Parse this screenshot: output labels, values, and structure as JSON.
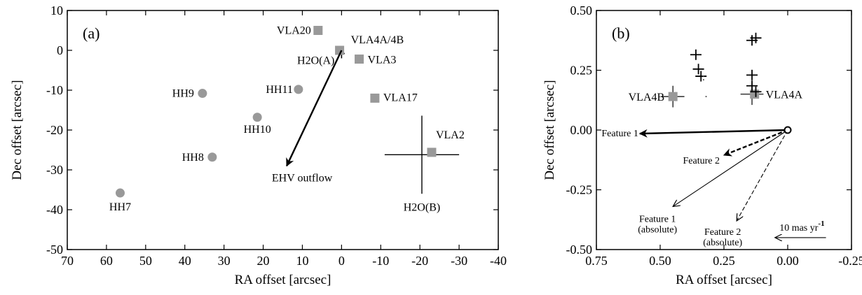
{
  "chart_data": [
    {
      "panel_label": "(a)",
      "type": "scatter",
      "xlabel": "RA offset [arcsec]",
      "ylabel": "Dec offset [arcsec]",
      "xlim": [
        70,
        -40
      ],
      "ylim": [
        -50,
        10
      ],
      "xticks": [
        70,
        60,
        50,
        40,
        30,
        20,
        10,
        0,
        -10,
        -20,
        -30,
        -40
      ],
      "xtick_labels": [
        "70",
        "60",
        "50",
        "40",
        "30",
        "20",
        "10",
        "0",
        "-10",
        "-20",
        "-30",
        "-40"
      ],
      "yticks": [
        10,
        0,
        -10,
        -20,
        -30,
        -40,
        -50
      ],
      "ytick_labels": [
        "10",
        "0",
        "-10",
        "-20",
        "-30",
        "-40",
        "-50"
      ],
      "grid": false,
      "marker_color": "#999999",
      "circles": [
        {
          "label": "HH9",
          "x": 35.5,
          "y": -10.8
        },
        {
          "label": "HH11",
          "x": 11,
          "y": -9.8
        },
        {
          "label": "HH10",
          "x": 21.5,
          "y": -16.8
        },
        {
          "label": "HH8",
          "x": 33,
          "y": -26.8
        },
        {
          "label": "HH7",
          "x": 56.5,
          "y": -35.8
        }
      ],
      "squares": [
        {
          "label": "VLA20",
          "x": 6,
          "y": 5
        },
        {
          "label": "VLA4A/4B",
          "x": 0.5,
          "y": 0
        },
        {
          "label": "VLA3",
          "x": -4.5,
          "y": -2.2
        },
        {
          "label": "VLA17",
          "x": -8.5,
          "y": -12
        },
        {
          "label": "VLA2",
          "x": -23,
          "y": -25.6
        }
      ],
      "crosses": [
        {
          "label": "H2O(A)",
          "x": 0,
          "y": -0.8,
          "dx": 0.8,
          "dy": 1.2
        },
        {
          "label": "H2O(B)",
          "x": -20.5,
          "y": -26.2,
          "dx": 9.5,
          "dy": 9.8
        }
      ],
      "arrow": {
        "label": "EHV outflow",
        "from": [
          0,
          0
        ],
        "to": [
          14,
          -29
        ]
      }
    },
    {
      "panel_label": "(b)",
      "type": "scatter",
      "xlabel": "RA offset [arcsec]",
      "ylabel": "Dec offset [arcsec]",
      "xlim": [
        0.75,
        -0.25
      ],
      "ylim": [
        -0.5,
        0.5
      ],
      "xticks": [
        0.75,
        0.5,
        0.25,
        0,
        -0.25
      ],
      "xtick_labels": [
        "0.75",
        "0.50",
        "0.25",
        "0.00",
        "-0.25"
      ],
      "yticks": [
        0.5,
        0.25,
        0,
        -0.25,
        -0.5
      ],
      "ytick_labels": [
        "0.50",
        "0.25",
        "0.00",
        "-0.25",
        "-0.50"
      ],
      "grid": false,
      "marker_color": "#999999",
      "squares": [
        {
          "label": "VLA4B",
          "x": 0.45,
          "y": 0.14
        },
        {
          "label": "VLA4A",
          "x": 0.13,
          "y": 0.15
        }
      ],
      "vla_crosses": [
        {
          "x": 0.45,
          "y": 0.14,
          "dx": 0.045,
          "dy": 0.045
        },
        {
          "x": 0.14,
          "y": 0.15,
          "dx": 0.045,
          "dy": 0.045
        }
      ],
      "maser_crosses": [
        {
          "x": 0.36,
          "y": 0.315
        },
        {
          "x": 0.35,
          "y": 0.255
        },
        {
          "x": 0.34,
          "y": 0.225
        },
        {
          "x": 0.14,
          "y": 0.375
        },
        {
          "x": 0.125,
          "y": 0.385
        },
        {
          "x": 0.14,
          "y": 0.23
        },
        {
          "x": 0.14,
          "y": 0.185
        },
        {
          "x": 0.125,
          "y": 0.16
        }
      ],
      "dots": [
        {
          "x": 0.33,
          "y": 0.225
        },
        {
          "x": 0.33,
          "y": 0.21
        },
        {
          "x": 0.32,
          "y": 0.14
        }
      ],
      "origin": {
        "x": 0.0,
        "y": 0.0
      },
      "arrows": [
        {
          "label": "Feature 1",
          "from": [
            0.0,
            0.0
          ],
          "to": [
            0.58,
            -0.015
          ],
          "style": "thick"
        },
        {
          "label": "Feature 2",
          "from": [
            0.0,
            0.0
          ],
          "to": [
            0.25,
            -0.105
          ],
          "style": "thick-dashed"
        },
        {
          "label": "Feature 1 (absolute)",
          "from": [
            0.0,
            0.0
          ],
          "to": [
            0.45,
            -0.32
          ],
          "style": "thin"
        },
        {
          "label": "Feature 2 (absolute)",
          "from": [
            0.0,
            0.0
          ],
          "to": [
            0.2,
            -0.38
          ],
          "style": "thin-dashed"
        }
      ],
      "scale_bar": {
        "label": "10 mas yr",
        "superscript": "-1",
        "from": [
          -0.15,
          -0.45
        ],
        "to": [
          0.05,
          -0.45
        ]
      }
    }
  ]
}
